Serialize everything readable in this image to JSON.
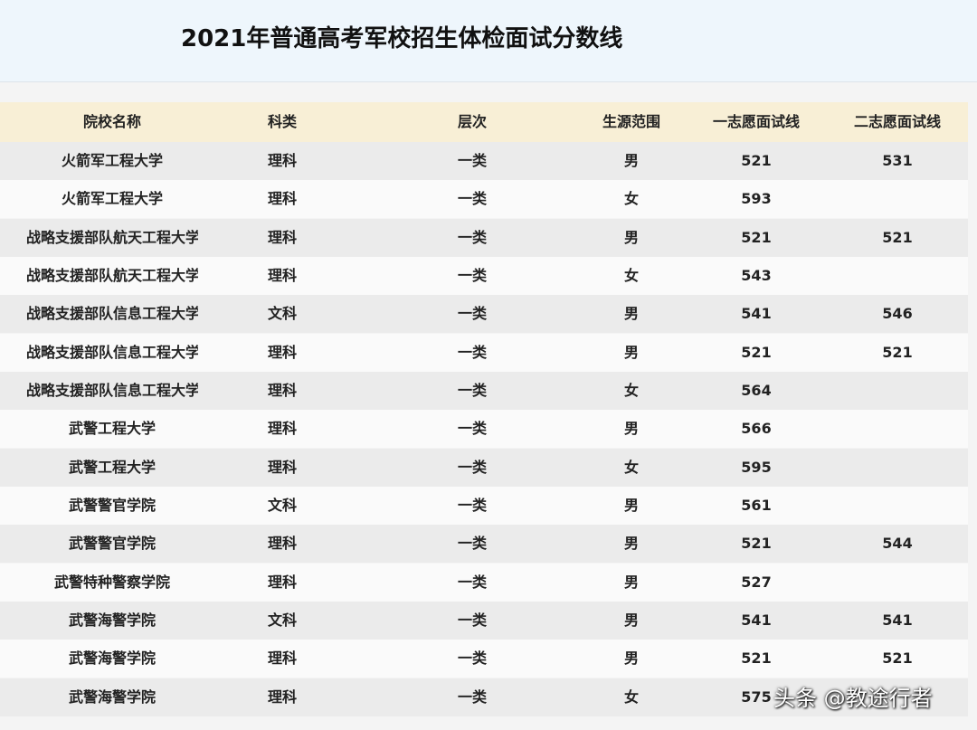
{
  "header": {
    "title": "2021年普通高考军校招生体检面试分数线"
  },
  "table": {
    "columns": [
      "院校名称",
      "科类",
      "层次",
      "生源范围",
      "一志愿面试线",
      "二志愿面试线"
    ],
    "rows": [
      [
        "火箭军工程大学",
        "理科",
        "一类",
        "男",
        521,
        531
      ],
      [
        "火箭军工程大学",
        "理科",
        "一类",
        "女",
        593,
        null
      ],
      [
        "战略支援部队航天工程大学",
        "理科",
        "一类",
        "男",
        521,
        521
      ],
      [
        "战略支援部队航天工程大学",
        "理科",
        "一类",
        "女",
        543,
        null
      ],
      [
        "战略支援部队信息工程大学",
        "文科",
        "一类",
        "男",
        541,
        546
      ],
      [
        "战略支援部队信息工程大学",
        "理科",
        "一类",
        "男",
        521,
        521
      ],
      [
        "战略支援部队信息工程大学",
        "理科",
        "一类",
        "女",
        564,
        null
      ],
      [
        "武警工程大学",
        "理科",
        "一类",
        "男",
        566,
        null
      ],
      [
        "武警工程大学",
        "理科",
        "一类",
        "女",
        595,
        null
      ],
      [
        "武警警官学院",
        "文科",
        "一类",
        "男",
        561,
        null
      ],
      [
        "武警警官学院",
        "理科",
        "一类",
        "男",
        521,
        544
      ],
      [
        "武警特种警察学院",
        "理科",
        "一类",
        "男",
        527,
        null
      ],
      [
        "武警海警学院",
        "文科",
        "一类",
        "男",
        541,
        541
      ],
      [
        "武警海警学院",
        "理科",
        "一类",
        "男",
        521,
        521
      ],
      [
        "武警海警学院",
        "理科",
        "一类",
        "女",
        575,
        null
      ]
    ]
  },
  "watermark": "头条 @教途行者"
}
